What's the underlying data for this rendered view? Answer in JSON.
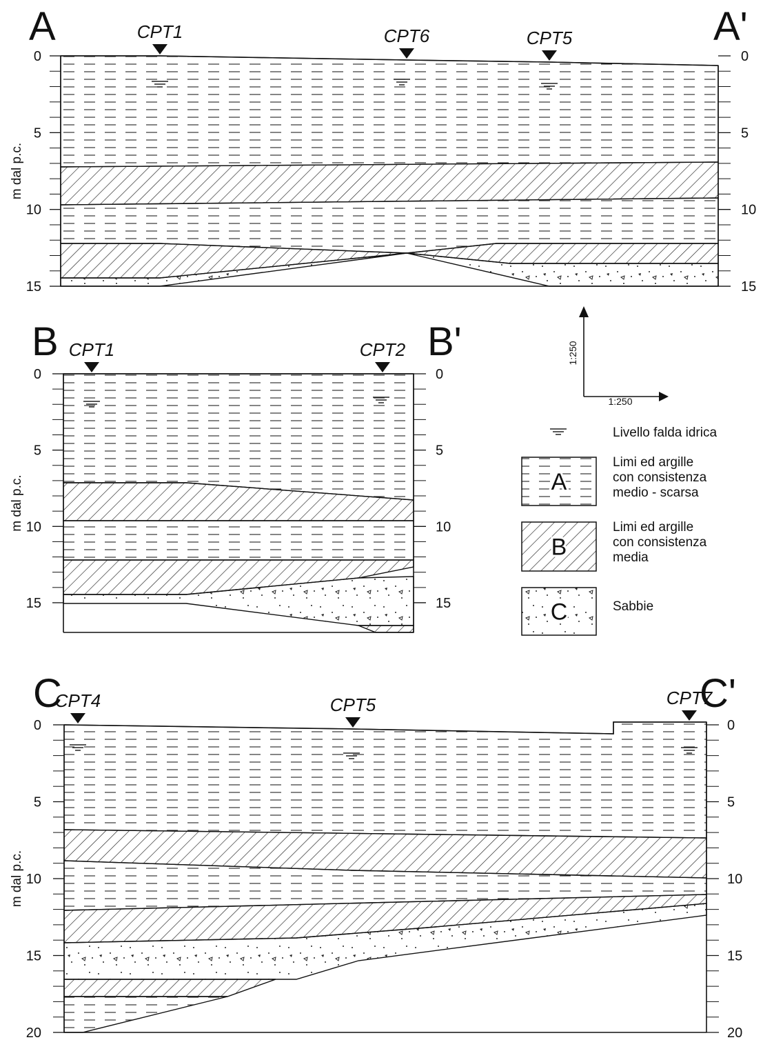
{
  "sections": [
    {
      "start": "A",
      "end": "A'",
      "axis_label": "m dal p.c.",
      "cpts": [
        "CPT1",
        "CPT6",
        "CPT5"
      ],
      "left_ticks": [
        0,
        5,
        10,
        15
      ],
      "right_ticks": [
        0,
        5,
        10,
        15
      ]
    },
    {
      "start": "B",
      "end": "B'",
      "axis_label": "m dal p.c.",
      "cpts": [
        "CPT1",
        "CPT2"
      ],
      "left_ticks": [
        0,
        5,
        10,
        15
      ],
      "right_ticks": [
        0,
        5,
        10,
        15
      ]
    },
    {
      "start": "C",
      "end": "C'",
      "axis_label": "m dal p.c.",
      "cpts": [
        "CPT4",
        "CPT5",
        "CPT7"
      ],
      "left_ticks": [
        0,
        5,
        10,
        15,
        20
      ],
      "right_ticks": [
        0,
        5,
        10,
        15,
        20
      ]
    }
  ],
  "scale": {
    "vertical": "1:250",
    "horizontal": "1:250"
  },
  "legend": {
    "water_table": "Livello falda idrica",
    "items": [
      {
        "symbol": "A",
        "lines": [
          "Limi ed argille",
          "con consistenza",
          "medio - scarsa"
        ]
      },
      {
        "symbol": "B",
        "lines": [
          "Limi ed argille",
          "con consistenza",
          "media"
        ]
      },
      {
        "symbol": "C",
        "lines": [
          "Sabbie"
        ]
      }
    ]
  }
}
